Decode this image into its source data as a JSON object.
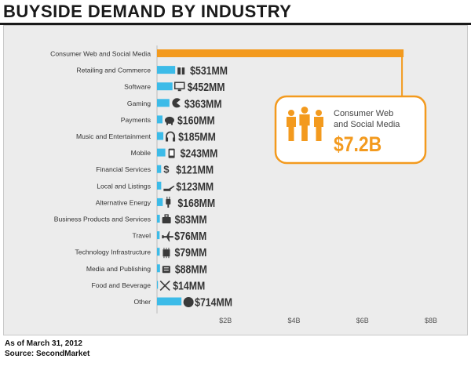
{
  "title": "BUYSIDE DEMAND BY INDUSTRY",
  "footer": {
    "date": "As of March 31, 2012",
    "source": "Source: SecondMarket"
  },
  "colors": {
    "bar": "#3cbbe8",
    "highlight": "#f39a1e",
    "text": "#333333",
    "value": "#333333"
  },
  "callout": {
    "label_line1": "Consumer Web",
    "label_line2": "and Social Media",
    "value": "$7.2B",
    "icon": "people-group-icon"
  },
  "chart_data": {
    "type": "bar",
    "orientation": "horizontal",
    "categories": [
      "Consumer Web and Social Media",
      "Retailing and Commerce",
      "Software",
      "Gaming",
      "Payments",
      "Music and Entertainment",
      "Mobile",
      "Financial Services",
      "Local and Listings",
      "Alternative Energy",
      "Business Products and Services",
      "Travel",
      "Technology Infrastructure",
      "Media and Publishing",
      "Food and Beverage",
      "Other"
    ],
    "values": [
      7200,
      531,
      452,
      363,
      160,
      185,
      243,
      121,
      123,
      168,
      83,
      76,
      79,
      88,
      14,
      714
    ],
    "labels": [
      "",
      "$531MM",
      "$452MM",
      "$363MM",
      "$160MM",
      "$185MM",
      "$243MM",
      "$121MM",
      "$123MM",
      "$168MM",
      "$83MM",
      "$76MM",
      "$79MM",
      "$88MM",
      "$14MM",
      "$714MM"
    ],
    "icons": [
      "",
      "gift-icon",
      "monitor-icon",
      "pacman-icon",
      "piggy-bank-icon",
      "headphones-icon",
      "phone-icon",
      "dollar-icon",
      "pointing-hand-icon",
      "plug-icon",
      "briefcase-icon",
      "airplane-icon",
      "chip-icon",
      "newspaper-icon",
      "fork-knife-icon",
      "globe-icon"
    ],
    "highlight": 0,
    "x_ticks": [
      "$2B",
      "$4B",
      "$6B",
      "$8B"
    ],
    "x_tick_values": [
      2000,
      4000,
      6000,
      8000
    ],
    "xlim": [
      0,
      8000
    ],
    "units": "$MM"
  }
}
